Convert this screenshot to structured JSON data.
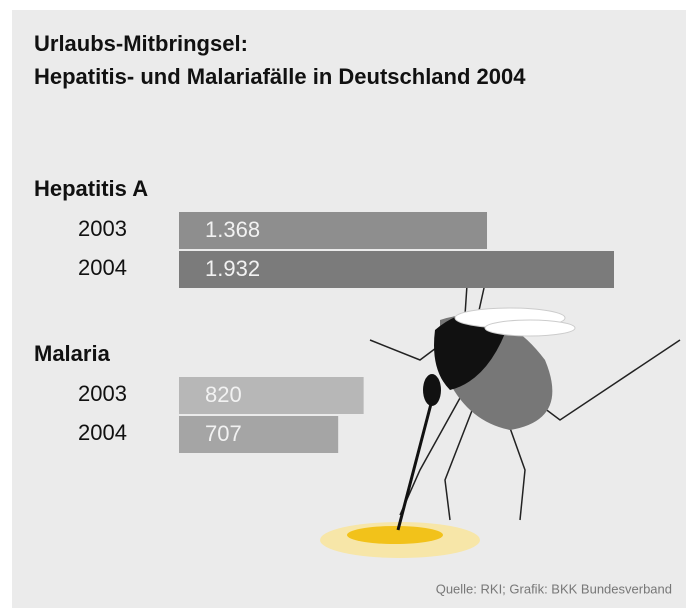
{
  "chart_data": {
    "type": "bar",
    "title": [
      "Urlaubs-Mitbringsel:",
      "Hepatitis- und Malariafälle in Deutschland 2004"
    ],
    "groups": [
      {
        "name": "Hepatitis A",
        "categories": [
          "2003",
          "2004"
        ],
        "values": [
          1368,
          1932
        ],
        "value_labels": [
          "1.368",
          "1.932"
        ],
        "colors": [
          "#8e8e8e",
          "#7b7b7b"
        ]
      },
      {
        "name": "Malaria",
        "categories": [
          "2003",
          "2004"
        ],
        "values": [
          820,
          707
        ],
        "value_labels": [
          "820",
          "707"
        ],
        "colors": [
          "#b7b7b7",
          "#a5a5a5"
        ]
      }
    ],
    "source": "Quelle: RKI; Grafik: BKK Bundesverband"
  }
}
